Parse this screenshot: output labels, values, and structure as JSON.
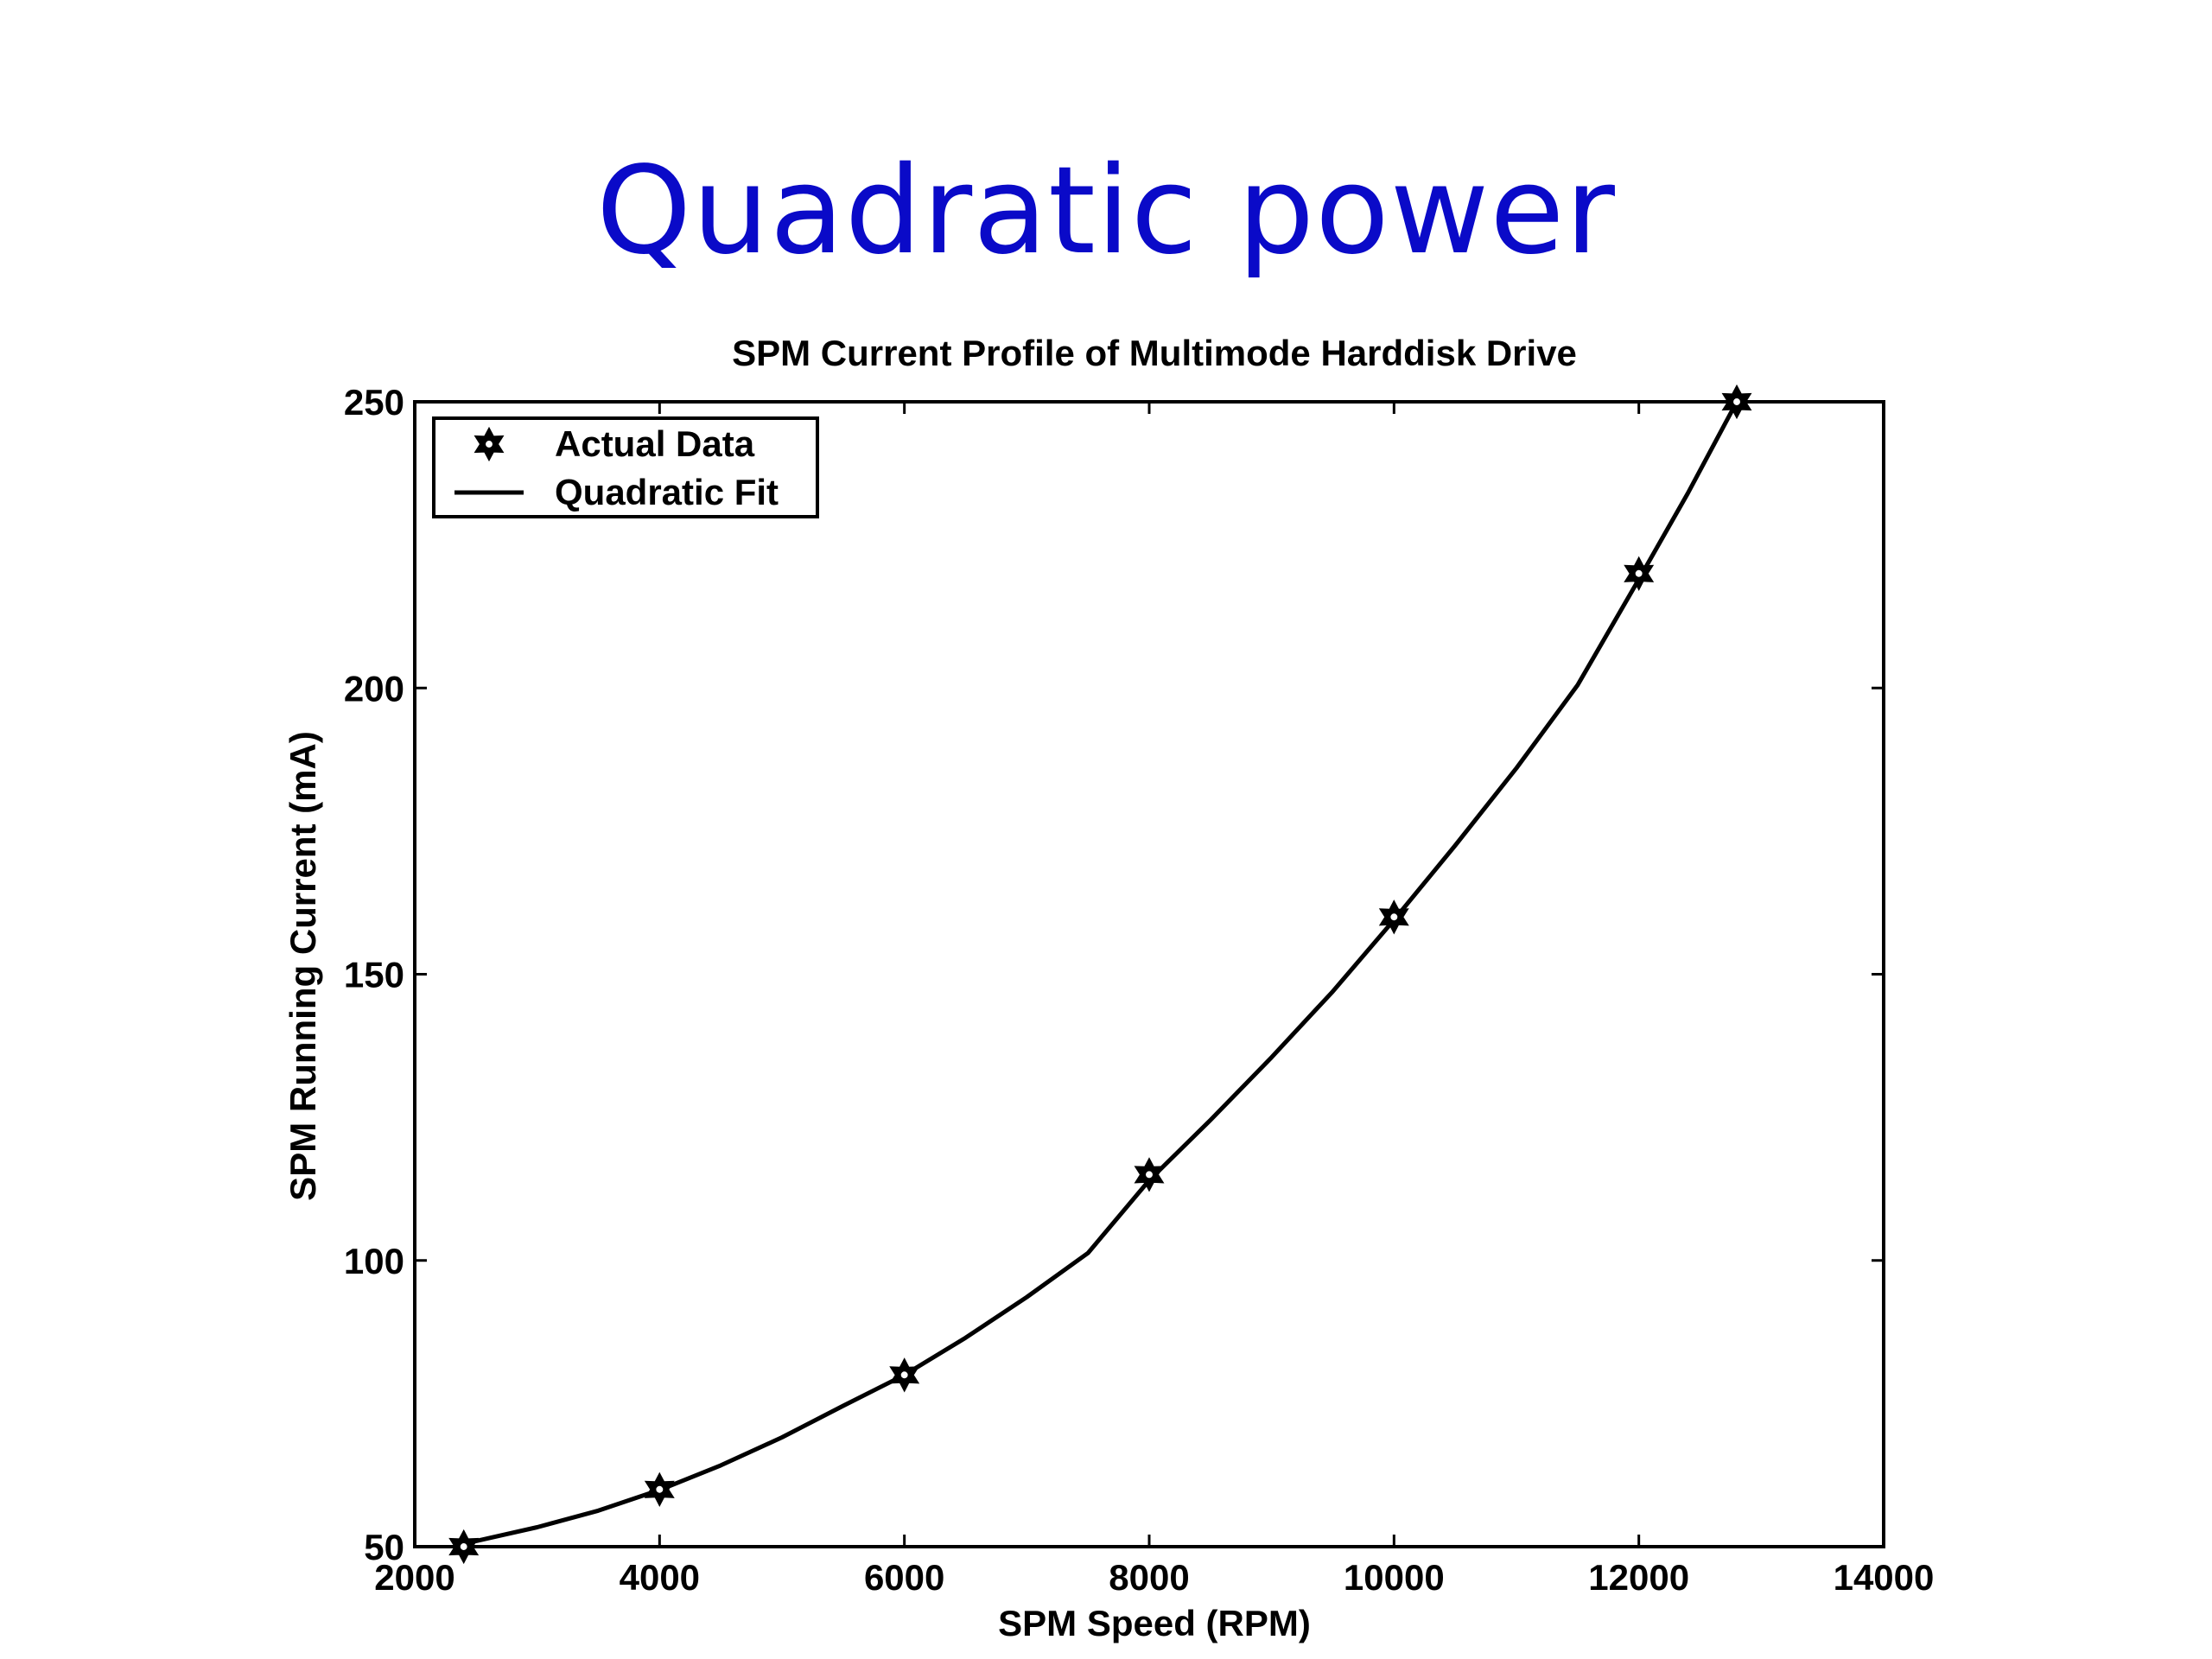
{
  "slide": {
    "title": "Quadratic power"
  },
  "chart_data": {
    "type": "line",
    "title": "SPM Current Profile of Multimode Harddisk Drive",
    "xlabel": "SPM Speed (RPM)",
    "ylabel": "SPM Running Current (mA)",
    "xlim": [
      2000,
      14000
    ],
    "ylim": [
      50,
      250
    ],
    "xticks": [
      2000,
      4000,
      6000,
      8000,
      10000,
      12000,
      14000
    ],
    "yticks": [
      50,
      100,
      150,
      200,
      250
    ],
    "grid": false,
    "legend_position": "top-left",
    "series": [
      {
        "name": "Actual Data",
        "kind": "markers",
        "marker": "star",
        "x": [
          2400,
          4000,
          6000,
          8000,
          10000,
          12000,
          12800
        ],
        "y": [
          50,
          60,
          80,
          115,
          160,
          220,
          250
        ]
      },
      {
        "name": "Quadratic Fit",
        "kind": "line",
        "x": [
          2400,
          3000,
          3500,
          4000,
          4500,
          5000,
          5500,
          6000,
          6500,
          7000,
          7500,
          8000,
          8500,
          9000,
          9500,
          10000,
          10500,
          11000,
          11500,
          12000,
          12400,
          12800
        ],
        "y": [
          50.5,
          53.4,
          56.3,
          59.9,
          64.2,
          69.1,
          74.6,
          80.0,
          86.5,
          93.6,
          101.3,
          114.0,
          124.5,
          135.5,
          147.0,
          159.5,
          172.5,
          186.0,
          200.5,
          219.0,
          234.0,
          250.0
        ]
      }
    ]
  },
  "colors": {
    "title": "#0a0ac8",
    "ink": "#000000"
  }
}
